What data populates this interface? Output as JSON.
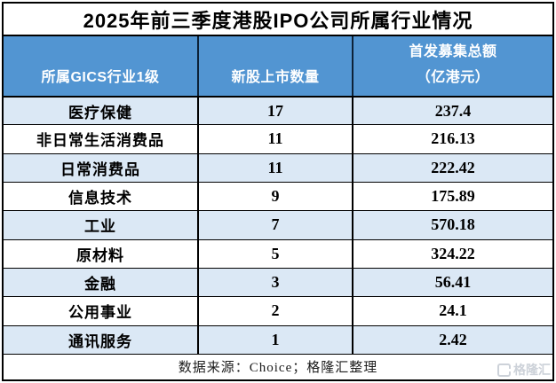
{
  "title": "2025年前三季度港股IPO公司所属行业情况",
  "header": {
    "industry": "所属GICS行业1级",
    "count": "新股上市数量",
    "amount_line1": "首发募集总额",
    "amount_line2": "（亿港元）"
  },
  "chart_data": {
    "type": "table",
    "title": "2025年前三季度港股IPO公司所属行业情况",
    "columns": [
      "所属GICS行业1级",
      "新股上市数量",
      "首发募集总额（亿港元）"
    ],
    "rows": [
      [
        "医疗保健",
        17,
        "237.4"
      ],
      [
        "非日常生活消费品",
        11,
        "216.13"
      ],
      [
        "日常消费品",
        11,
        "222.42"
      ],
      [
        "信息技术",
        9,
        "175.89"
      ],
      [
        "工业",
        7,
        "570.18"
      ],
      [
        "原材料",
        5,
        "324.22"
      ],
      [
        "金融",
        3,
        "56.41"
      ],
      [
        "公用事业",
        2,
        "24.1"
      ],
      [
        "通讯服务",
        1,
        "2.42"
      ]
    ],
    "source": "数据来源：Choice；格隆汇整理"
  },
  "watermark": {
    "brand": "格隆汇"
  },
  "colors": {
    "header_bg": "#5295D2",
    "band_bg": "#DBE8F5",
    "border": "#000000",
    "header_text": "#FFFFFF",
    "watermark": "#CDD2D9"
  }
}
